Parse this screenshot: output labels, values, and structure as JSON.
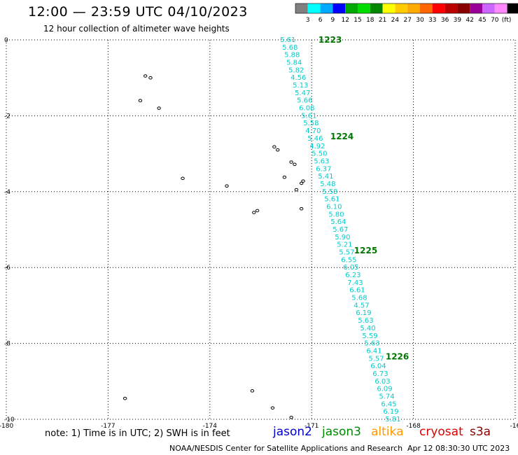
{
  "header": {
    "title": "12:00 — 23:59 UTC 04/10/2023",
    "subtitle": "12 hour collection of altimeter wave heights"
  },
  "colorbar": {
    "labels": [
      "3",
      "6",
      "9",
      "12",
      "15",
      "18",
      "21",
      "24",
      "27",
      "30",
      "33",
      "36",
      "39",
      "42",
      "45",
      "70"
    ],
    "unit": "(ft)",
    "colors": [
      "#808080",
      "#00ffff",
      "#00aaff",
      "#0000ff",
      "#00aa00",
      "#00dd00",
      "#008800",
      "#ffff00",
      "#ffcc00",
      "#ffaa00",
      "#ff6600",
      "#ff0000",
      "#bb0000",
      "#880000",
      "#990099",
      "#cc66ff",
      "#ff88ff",
      "#000000"
    ]
  },
  "chart_data": {
    "type": "scatter",
    "title": "12:00 — 23:59 UTC 04/10/2023",
    "subtitle": "12 hour collection of altimeter wave heights",
    "xlabel": "",
    "ylabel": "",
    "xlim": [
      -180,
      -165
    ],
    "ylim": [
      -10,
      0
    ],
    "x_ticks": [
      "-180",
      "-177",
      "-174",
      "-171",
      "-168",
      "-16"
    ],
    "y_ticks": [
      "0",
      "-2",
      "-4",
      "-6",
      "-8",
      "-10"
    ],
    "grid": true,
    "track_start": [
      -171.7,
      0
    ],
    "track_end": [
      -168.6,
      -10
    ],
    "swh_labels": [
      "5.61",
      "5.68",
      "5.88",
      "5.84",
      "5.82",
      "4.56",
      "5.13",
      "5.47",
      "5.66",
      "6.08",
      "5.61",
      "5.58",
      "4.70",
      "5.46",
      "4.92",
      "5.50",
      "5.63",
      "6.37",
      "5.41",
      "5.48",
      "5.58",
      "5.61",
      "6.10",
      "5.80",
      "5.64",
      "5.67",
      "5.90",
      "5.21",
      "5.57",
      "6.55",
      "6.05",
      "6.23",
      "7.43",
      "6.61",
      "5.68",
      "4.57",
      "6.19",
      "5.63",
      "5.40",
      "5.59",
      "5.63",
      "6.41",
      "5.57",
      "6.04",
      "6.73",
      "6.03",
      "6.09",
      "5.74",
      "6.45",
      "6.19",
      "5.81"
    ],
    "time_labels": [
      {
        "text": "1223",
        "lon": -170.8,
        "lat": 0
      },
      {
        "text": "1224",
        "lon": -170.45,
        "lat": -2.55
      },
      {
        "text": "1225",
        "lon": -169.75,
        "lat": -5.55
      },
      {
        "text": "1226",
        "lon": -168.82,
        "lat": -8.35
      }
    ],
    "islands": [
      {
        "lon": -175.9,
        "lat": -0.95
      },
      {
        "lon": -175.75,
        "lat": -1.0
      },
      {
        "lon": -176.05,
        "lat": -1.6
      },
      {
        "lon": -175.5,
        "lat": -1.8
      },
      {
        "lon": -172.1,
        "lat": -2.82
      },
      {
        "lon": -172.0,
        "lat": -2.9
      },
      {
        "lon": -171.6,
        "lat": -3.22
      },
      {
        "lon": -171.5,
        "lat": -3.28
      },
      {
        "lon": -174.8,
        "lat": -3.65
      },
      {
        "lon": -171.8,
        "lat": -3.62
      },
      {
        "lon": -173.5,
        "lat": -3.85
      },
      {
        "lon": -171.25,
        "lat": -3.72
      },
      {
        "lon": -171.3,
        "lat": -3.78
      },
      {
        "lon": -171.45,
        "lat": -3.95
      },
      {
        "lon": -172.6,
        "lat": -4.5
      },
      {
        "lon": -172.7,
        "lat": -4.55
      },
      {
        "lon": -171.3,
        "lat": -4.45
      },
      {
        "lon": -172.75,
        "lat": -9.25
      },
      {
        "lon": -176.5,
        "lat": -9.45
      },
      {
        "lon": -172.15,
        "lat": -9.7
      },
      {
        "lon": -171.6,
        "lat": -9.95
      }
    ],
    "series": [
      {
        "name": "jason2",
        "color": "#0000cc"
      },
      {
        "name": "jason3",
        "color": "#008800"
      },
      {
        "name": "altika",
        "color": "#ff9900"
      },
      {
        "name": "cryosat",
        "color": "#dd0000"
      },
      {
        "name": "s3a",
        "color": "#880000"
      }
    ]
  },
  "note": "note:  1) Time is in UTC;  2) SWH is in feet",
  "footer": {
    "center": "NOAA/NESDIS Center for Satellite Applications and Research",
    "timestamp": "Apr 12 08:30:30 UTC 2023"
  }
}
